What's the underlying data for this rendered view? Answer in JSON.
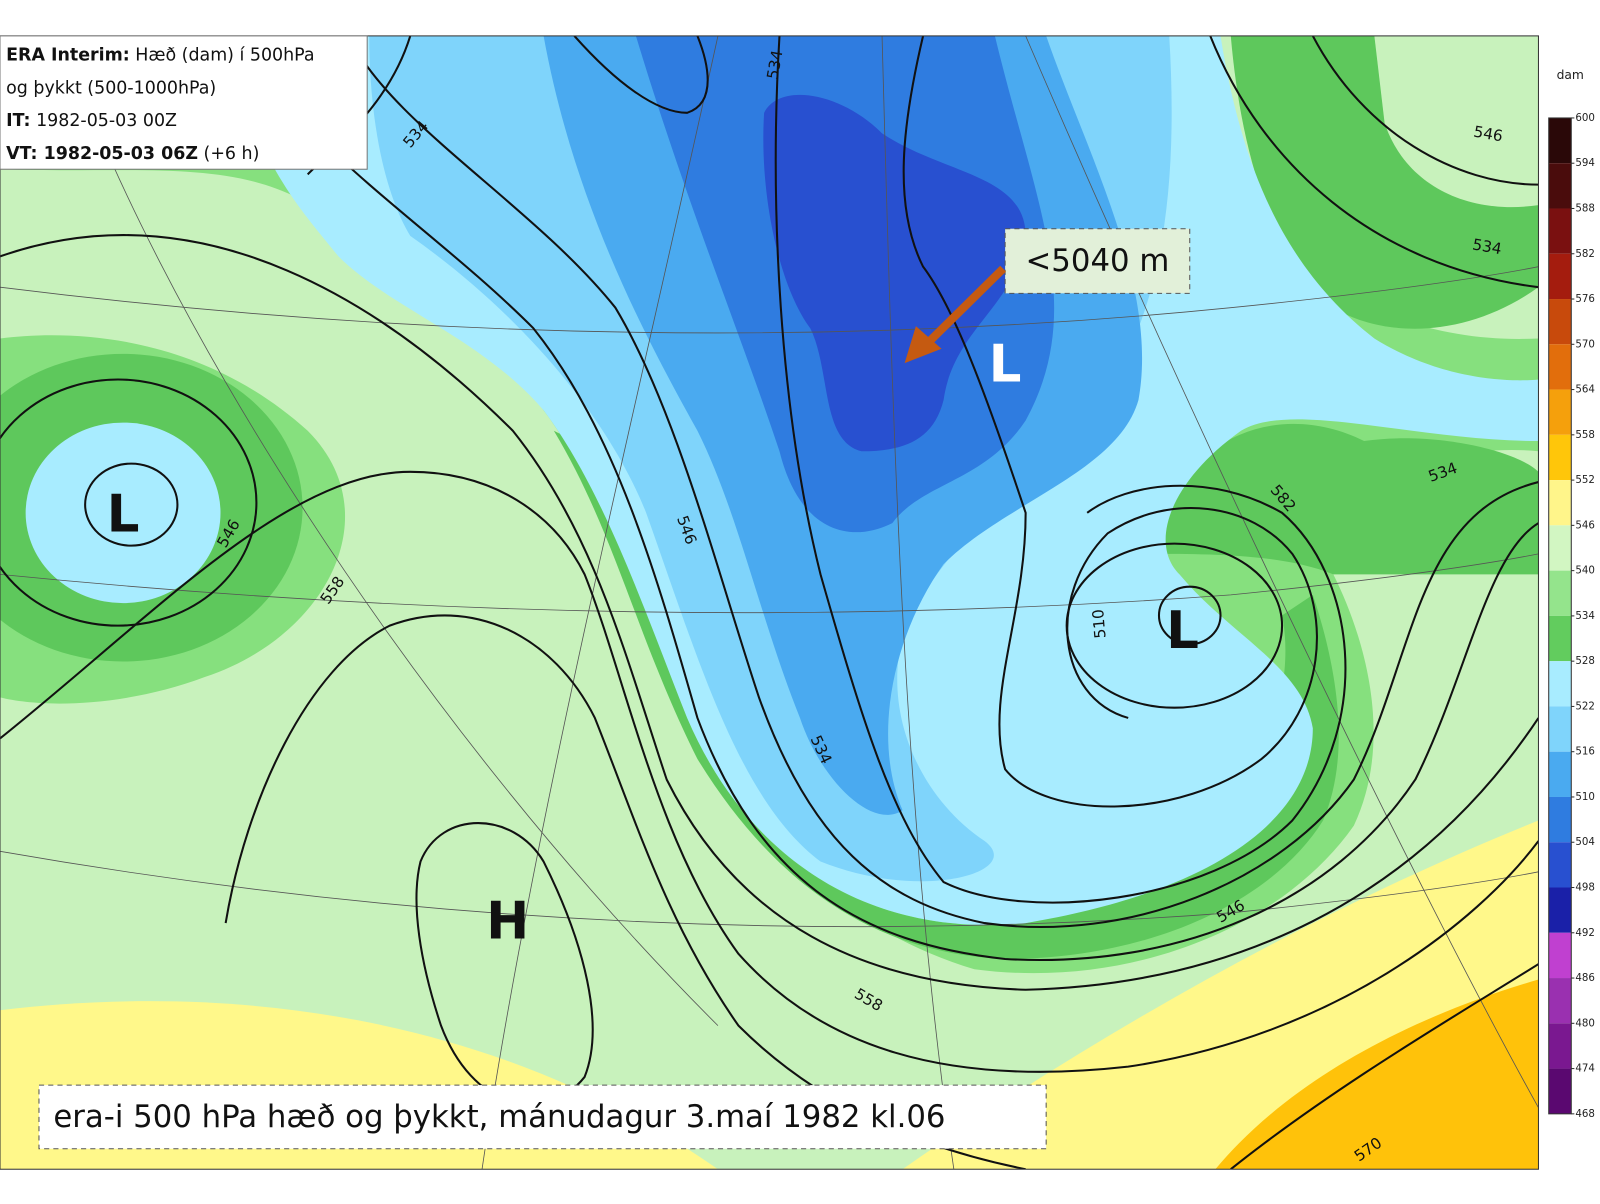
{
  "info_box": {
    "line1_bold": "ERA Interim:",
    "line1_rest": "Hæð (dam) í 500hPa",
    "line2": "og þykkt (500-1000hPa)",
    "it_label": "IT:",
    "it_value": "1982-05-03 00Z",
    "vt_label": "VT: 1982-05-03 06Z",
    "vt_suffix": "(+6 h)"
  },
  "annotation": "<5040 m",
  "caption": "era-i 500 hPa hæð og þykkt, mánudagur 3.maí 1982 kl.06",
  "pressure_centers": [
    "L",
    "L",
    "L",
    "H"
  ],
  "contour_labels": [
    "534",
    "534",
    "546",
    "558",
    "546",
    "534",
    "510",
    "582",
    "534",
    "546",
    "558",
    "546",
    "570",
    "534"
  ],
  "colorbar": {
    "unit": "dam",
    "ticks": [
      600,
      594,
      588,
      582,
      576,
      570,
      564,
      558,
      552,
      546,
      540,
      534,
      528,
      522,
      516,
      510,
      504,
      498,
      492,
      486,
      480,
      474,
      468
    ],
    "colors": [
      "#2a0808",
      "#4a0c0c",
      "#7a1010",
      "#a41c0e",
      "#c84a0c",
      "#e26e0c",
      "#f5a00c",
      "#ffc60a",
      "#fff58a",
      "#d2f6c2",
      "#94e48c",
      "#62cc5e",
      "#a8ecff",
      "#7fd4fb",
      "#4aaaf0",
      "#2f7ce0",
      "#2850d0",
      "#1a20a8",
      "#c040d0",
      "#9a30b0",
      "#7a1890",
      "#5a0870"
    ]
  }
}
